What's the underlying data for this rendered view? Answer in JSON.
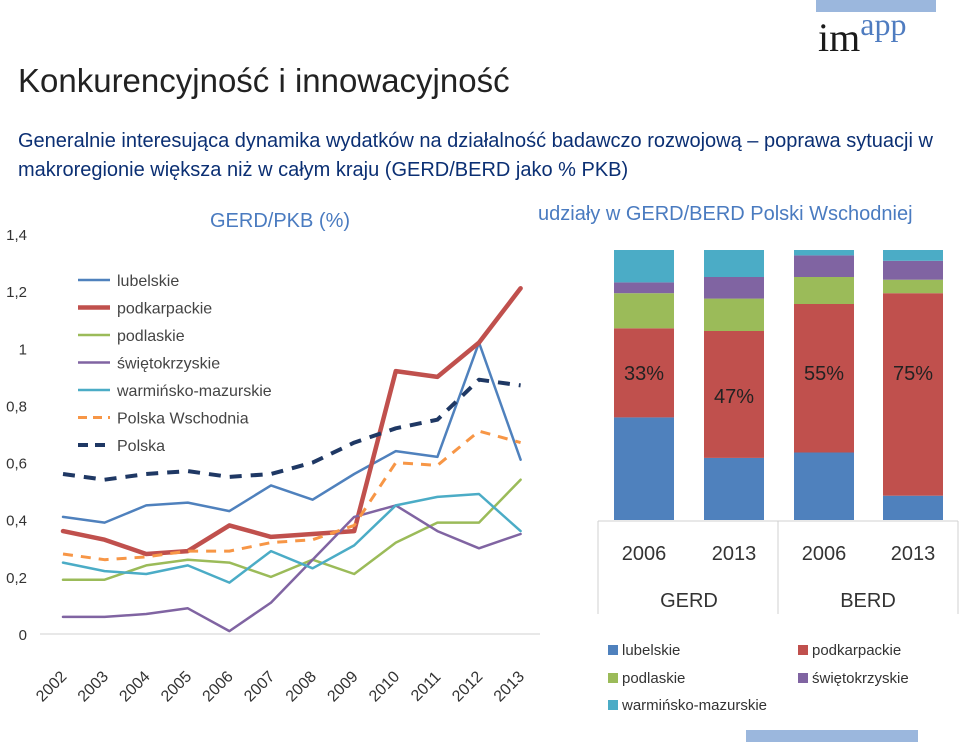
{
  "header": {
    "title": "Konkurencyjność i innowacyjność",
    "subtitle": "Generalnie interesująca dynamika wydatków na działalność badawczo rozwojową – poprawa sytuacji w makroregionie większa niż w całym kraju (GERD/BERD jako % PKB)",
    "logo_im": "im",
    "logo_app": "app"
  },
  "colors": {
    "lubelskie": "#4f81bd",
    "podkarpackie": "#c0504d",
    "podlaskie": "#9bbb59",
    "swietokrzyskie": "#8064a2",
    "warminsko": "#4bacc6",
    "wschodnia": "#f79646",
    "polska": "#1f3864"
  },
  "chart_data": [
    {
      "type": "line",
      "title": "GERD/PKB (%)",
      "x": [
        "2002",
        "2003",
        "2004",
        "2005",
        "2006",
        "2007",
        "2008",
        "2009",
        "2010",
        "2011",
        "2012",
        "2013"
      ],
      "ylim": [
        0,
        1.4
      ],
      "yticks": [
        "0",
        "0,2",
        "0,4",
        "0,6",
        "0,8",
        "1",
        "1,2",
        "1,4"
      ],
      "legend_position": "top-left",
      "grid": false,
      "series": [
        {
          "name": "lubelskie",
          "values": [
            0.41,
            0.39,
            0.45,
            0.46,
            0.43,
            0.52,
            0.47,
            0.56,
            0.64,
            0.62,
            1.02,
            0.61
          ]
        },
        {
          "name": "podkarpackie",
          "values": [
            0.36,
            0.33,
            0.28,
            0.29,
            0.38,
            0.34,
            0.35,
            0.36,
            0.92,
            0.9,
            1.02,
            1.21
          ]
        },
        {
          "name": "podlaskie",
          "values": [
            0.19,
            0.19,
            0.24,
            0.26,
            0.25,
            0.2,
            0.26,
            0.21,
            0.32,
            0.39,
            0.39,
            0.54
          ]
        },
        {
          "name": "świętokrzyskie",
          "values": [
            0.06,
            0.06,
            0.07,
            0.09,
            0.01,
            0.11,
            0.26,
            0.41,
            0.45,
            0.36,
            0.3,
            0.35
          ]
        },
        {
          "name": "warmińsko-mazurskie",
          "values": [
            0.25,
            0.22,
            0.21,
            0.24,
            0.18,
            0.29,
            0.23,
            0.31,
            0.45,
            0.48,
            0.49,
            0.36
          ]
        },
        {
          "name": "Polska Wschodnia",
          "values": [
            0.28,
            0.26,
            0.27,
            0.29,
            0.29,
            0.32,
            0.33,
            0.38,
            0.6,
            0.59,
            0.71,
            0.67
          ]
        },
        {
          "name": "Polska",
          "values": [
            0.56,
            0.54,
            0.56,
            0.57,
            0.55,
            0.56,
            0.6,
            0.67,
            0.72,
            0.75,
            0.89,
            0.87
          ]
        }
      ]
    },
    {
      "type": "bar",
      "stacked": "100%",
      "title": "udziały w GERD/BERD Polski Wschodniej",
      "categories": [
        "2006",
        "2013",
        "2006",
        "2013"
      ],
      "groups": [
        "GERD",
        "BERD"
      ],
      "legend_position": "bottom",
      "series": [
        {
          "name": "lubelskie",
          "values": [
            38,
            23,
            25,
            9
          ]
        },
        {
          "name": "podkarpackie",
          "values": [
            33,
            47,
            55,
            75
          ]
        },
        {
          "name": "podlaskie",
          "values": [
            13,
            12,
            10,
            5
          ]
        },
        {
          "name": "świętokrzyskie",
          "values": [
            4,
            8,
            8,
            7
          ]
        },
        {
          "name": "warmińsko-mazurskie",
          "values": [
            12,
            10,
            2,
            4
          ]
        }
      ],
      "data_labels": [
        "33%",
        "47%",
        "55%",
        "75%"
      ]
    }
  ]
}
